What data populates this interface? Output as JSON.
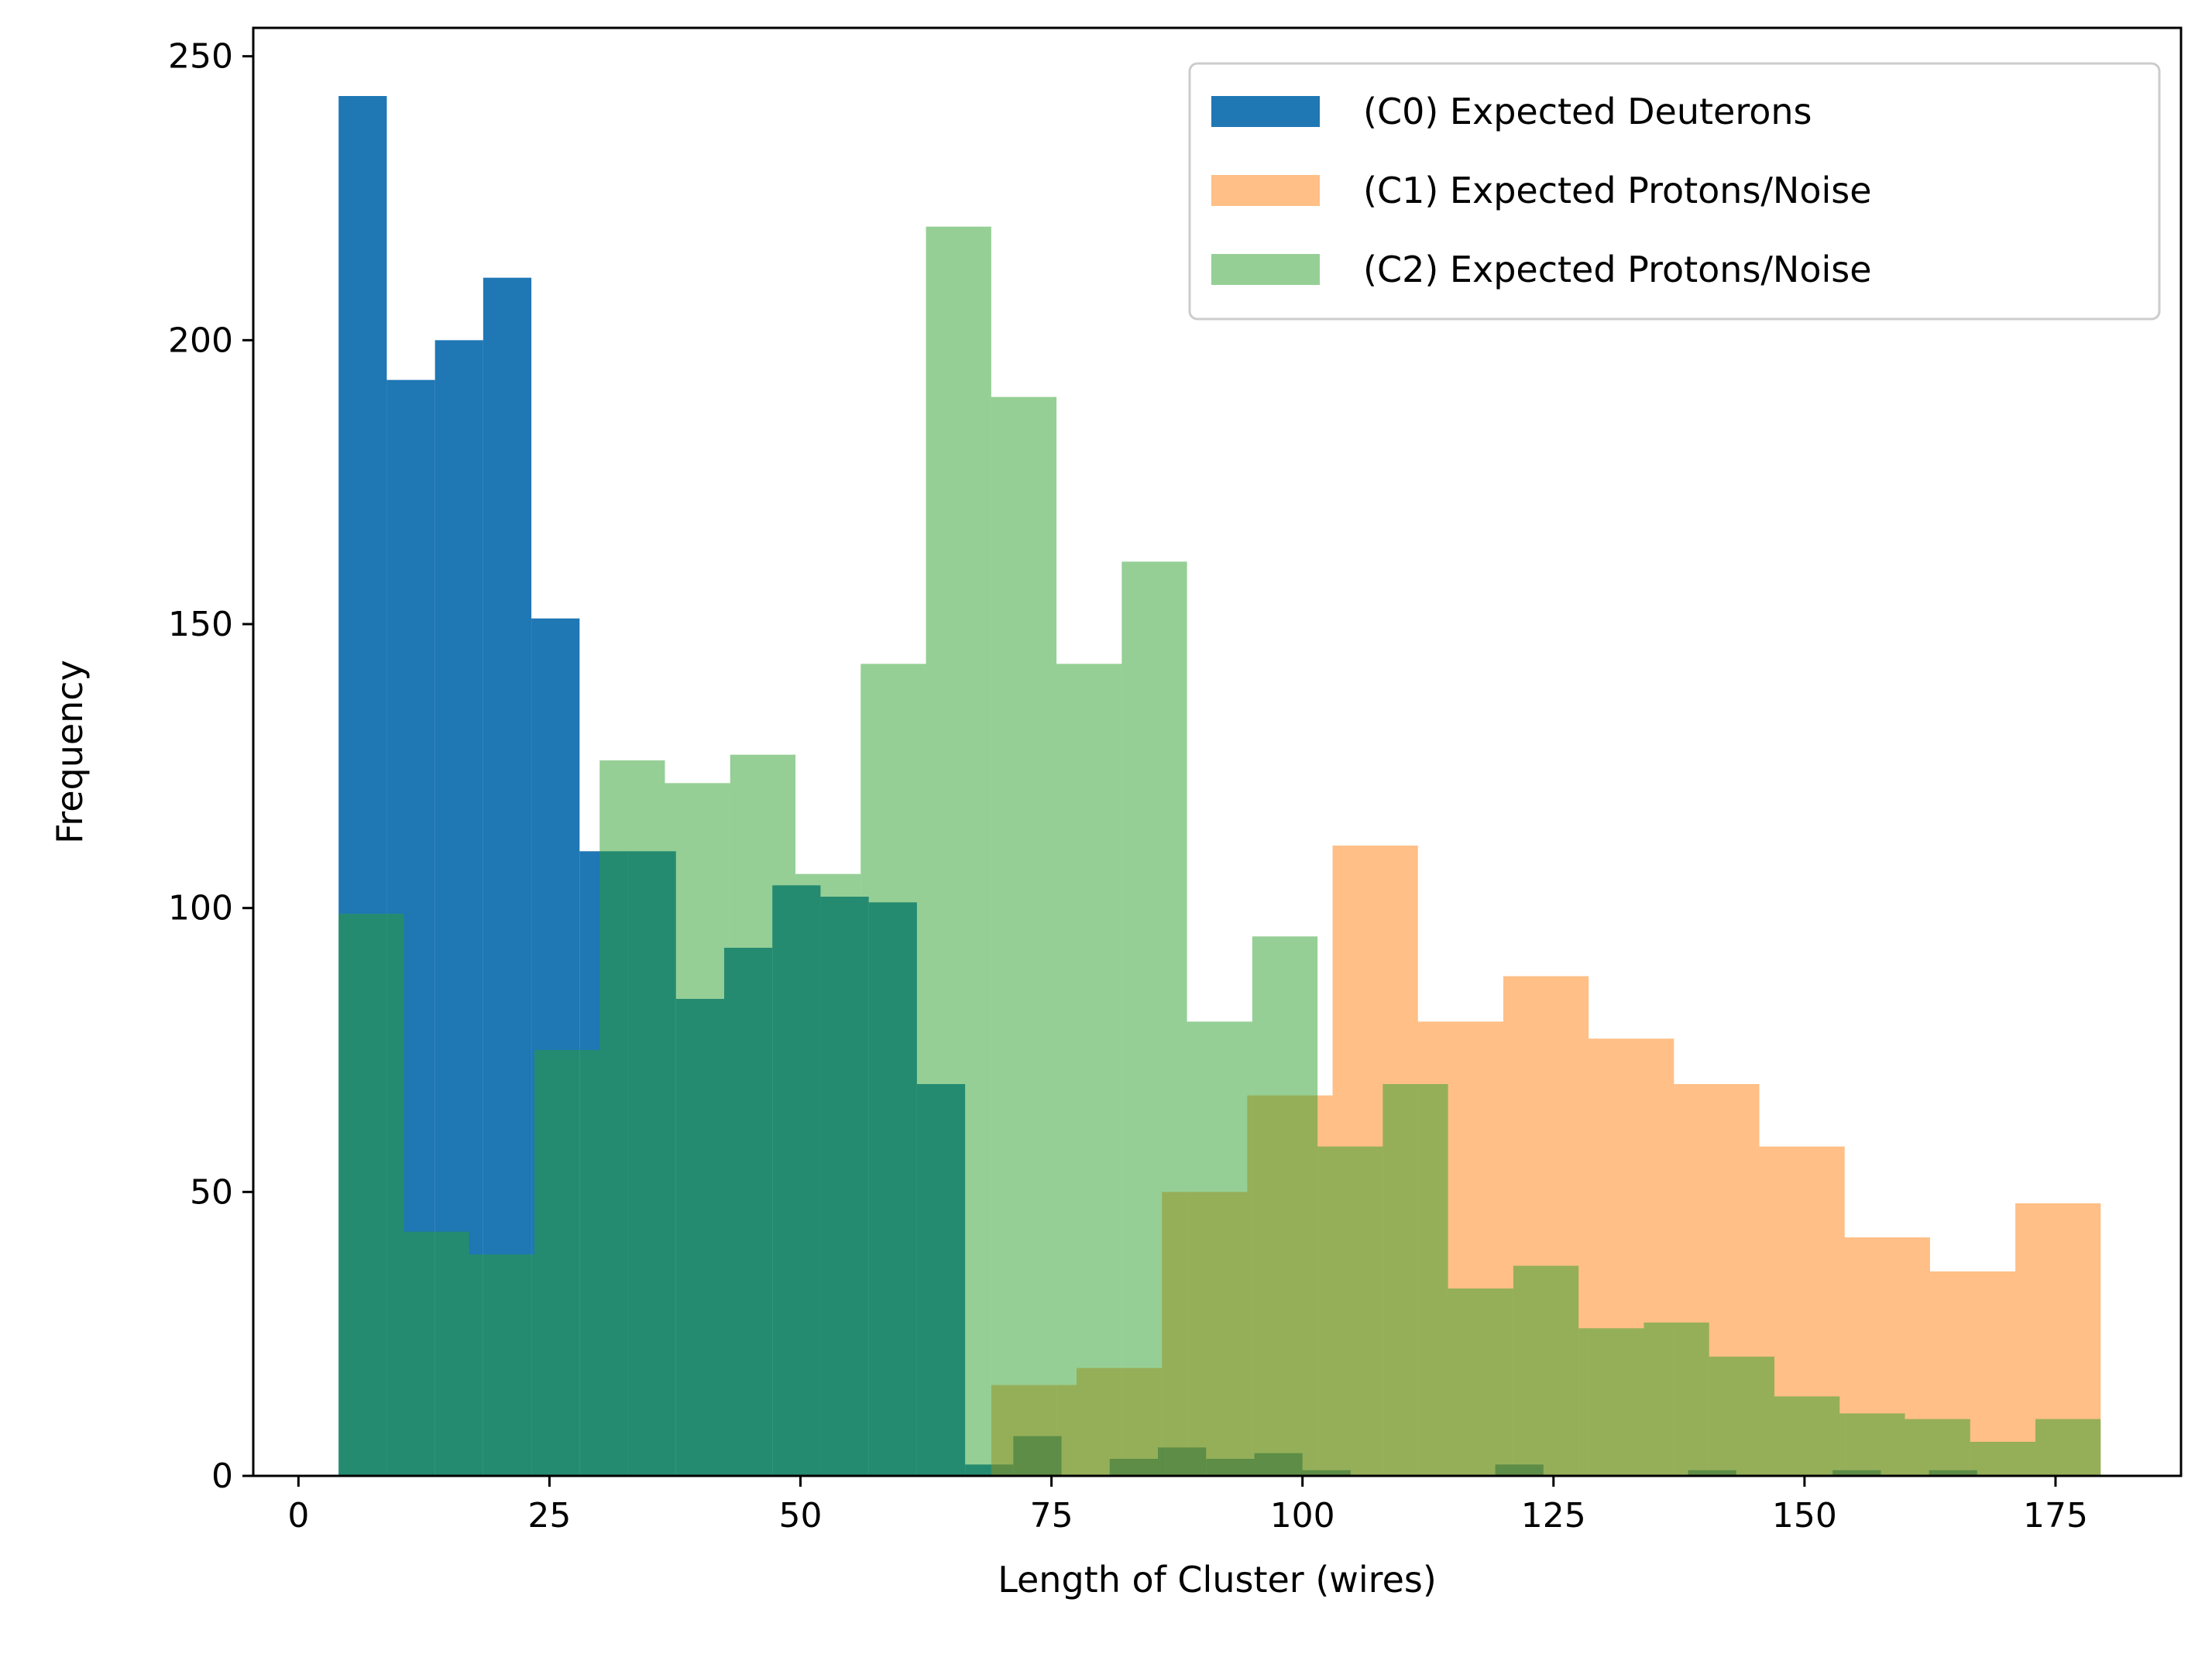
{
  "chart_data": {
    "type": "bar",
    "subtype": "overlapping-histogram",
    "title": "",
    "xlabel": "Length of Cluster (wires)",
    "ylabel": "Frequency",
    "xlim": [
      -4.5,
      187.5
    ],
    "ylim": [
      0,
      255
    ],
    "xticks": [
      0,
      25,
      50,
      75,
      100,
      125,
      150,
      175
    ],
    "yticks": [
      0,
      50,
      100,
      150,
      200,
      250
    ],
    "grid": false,
    "legend": "top-right",
    "series": [
      {
        "name": "(C0) Expected Deuterons",
        "color": "#1f77b4",
        "opacity": 1.0,
        "bins": [
          4,
          8.8,
          13.6,
          18.4,
          23.2,
          28,
          32.8,
          37.6,
          42.4,
          47.2,
          52,
          56.8,
          61.6,
          66.4,
          71.2,
          76,
          80.8,
          85.6,
          90.4,
          95.2,
          100,
          104.8,
          109.6,
          114.4,
          119.2,
          124,
          128.8,
          133.6,
          138.4,
          143.2,
          148,
          152.8,
          157.6,
          162.4,
          167.2,
          172,
          176.8
        ],
        "values": [
          243,
          193,
          200,
          211,
          151,
          110,
          110,
          84,
          93,
          104,
          102,
          101,
          69,
          2,
          7,
          0,
          3,
          5,
          3,
          4,
          1,
          0,
          0,
          0,
          2,
          0,
          0,
          0,
          1,
          0,
          0,
          1,
          0,
          1,
          0,
          0
        ]
      },
      {
        "name": "(C1) Expected Protons/Noise",
        "color": "#ff7f0e",
        "opacity": 0.5,
        "bins": [
          69,
          77.5,
          86,
          94.5,
          103,
          111.5,
          120,
          128.5,
          137,
          145.5,
          154,
          162.5,
          171,
          179.5
        ],
        "values": [
          16,
          19,
          50,
          67,
          111,
          80,
          88,
          77,
          69,
          58,
          42,
          36,
          48
        ]
      },
      {
        "name": "(C2) Expected Protons/Noise",
        "color": "#2ca02c",
        "opacity": 0.5,
        "bins": [
          4,
          10.5,
          17,
          23.5,
          30,
          36.5,
          43,
          49.5,
          56,
          62.5,
          69,
          75.5,
          82,
          88.5,
          95,
          101.5,
          108,
          114.5,
          121,
          127.5,
          134,
          140.5,
          147,
          153.5,
          160,
          166.5,
          173,
          179.5
        ],
        "values": [
          99,
          43,
          39,
          75,
          126,
          122,
          127,
          106,
          143,
          220,
          190,
          143,
          161,
          80,
          95,
          58,
          69,
          33,
          37,
          26,
          27,
          21,
          14,
          11,
          10,
          6,
          10
        ]
      }
    ]
  }
}
